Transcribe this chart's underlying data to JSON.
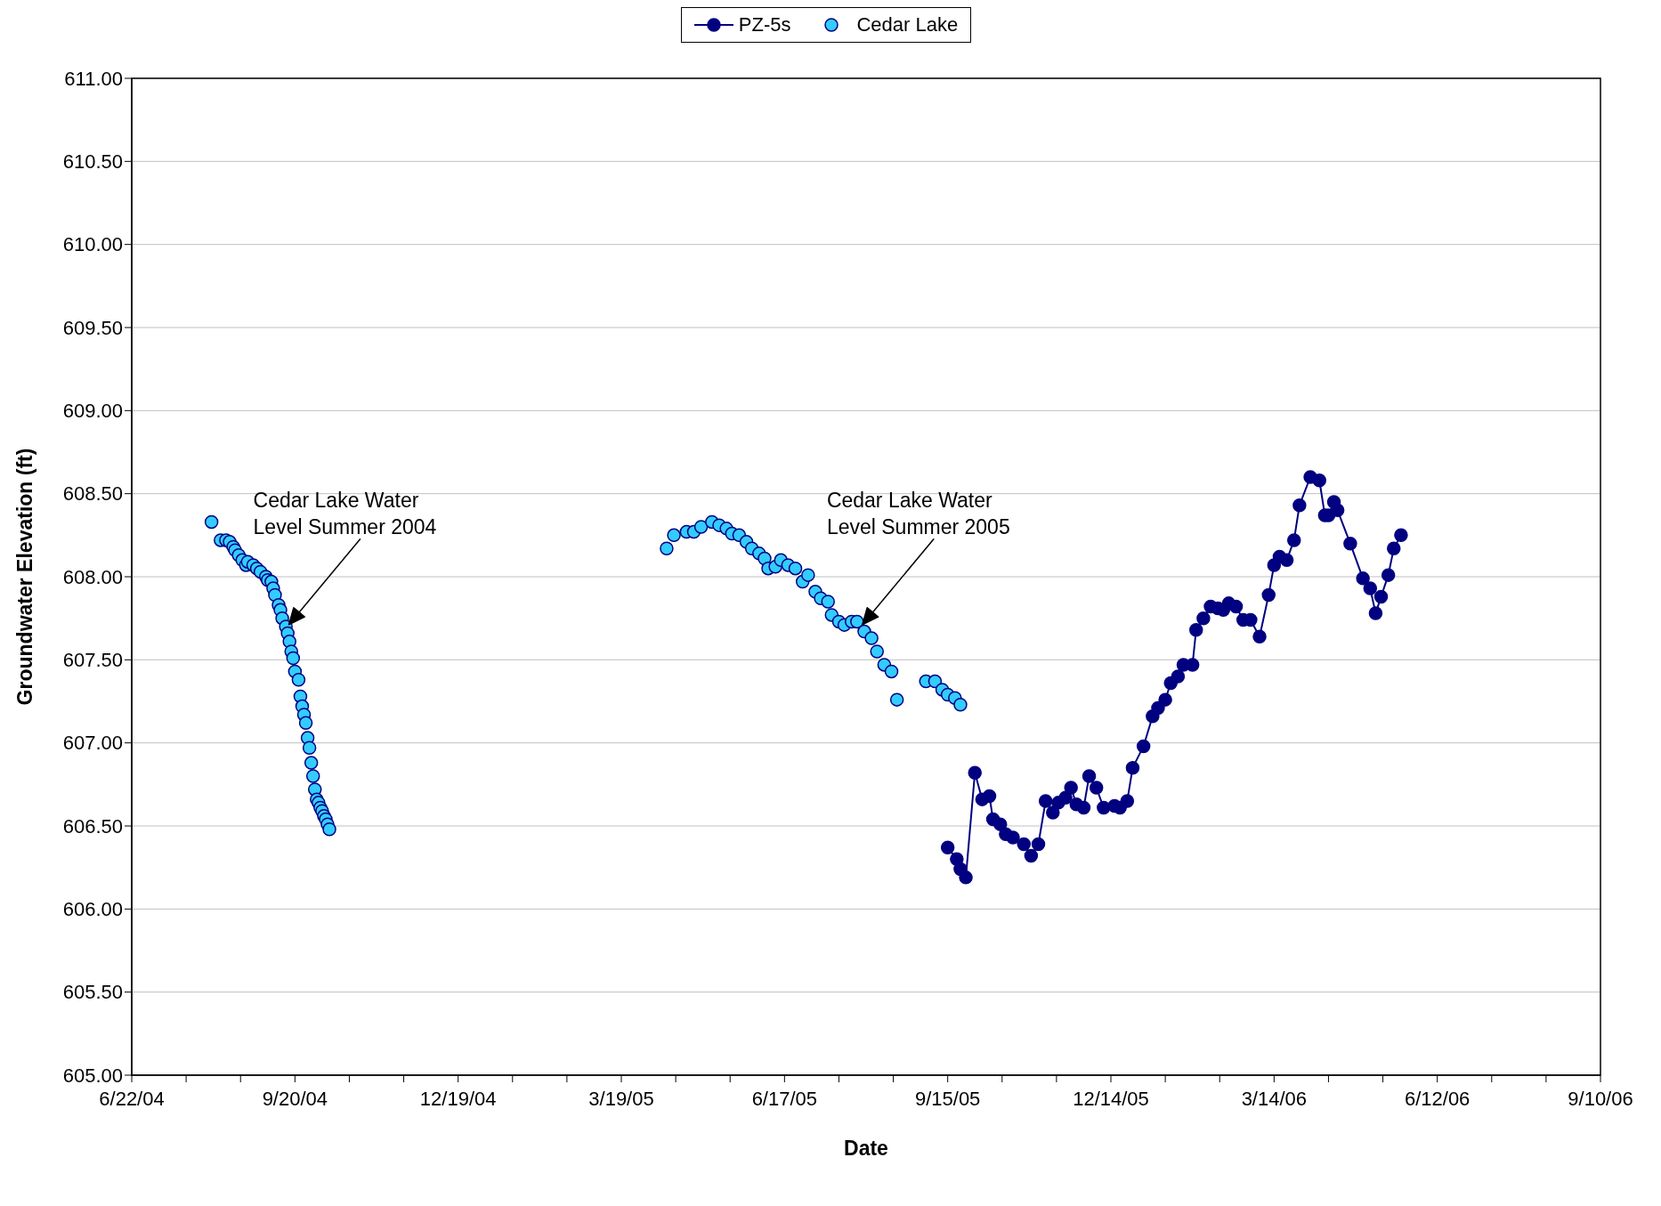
{
  "chart_data": {
    "type": "line",
    "xlabel": "Date",
    "ylabel": "Groundwater Elevation (ft)",
    "xlim": [
      "2004-06-22",
      "2006-09-10"
    ],
    "xticks": [
      {
        "value": "2004-06-22",
        "label": "6/22/04"
      },
      {
        "value": "2004-07-22",
        "label": null
      },
      {
        "value": "2004-08-21",
        "label": null
      },
      {
        "value": "2004-09-20",
        "label": "9/20/04"
      },
      {
        "value": "2004-10-20",
        "label": null
      },
      {
        "value": "2004-11-19",
        "label": null
      },
      {
        "value": "2004-12-19",
        "label": "12/19/04"
      },
      {
        "value": "2005-01-18",
        "label": null
      },
      {
        "value": "2005-02-17",
        "label": null
      },
      {
        "value": "2005-03-19",
        "label": "3/19/05"
      },
      {
        "value": "2005-04-18",
        "label": null
      },
      {
        "value": "2005-05-18",
        "label": null
      },
      {
        "value": "2005-06-17",
        "label": "6/17/05"
      },
      {
        "value": "2005-07-17",
        "label": null
      },
      {
        "value": "2005-08-16",
        "label": null
      },
      {
        "value": "2005-09-15",
        "label": "9/15/05"
      },
      {
        "value": "2005-10-15",
        "label": null
      },
      {
        "value": "2005-11-14",
        "label": null
      },
      {
        "value": "2005-12-14",
        "label": "12/14/05"
      },
      {
        "value": "2006-01-13",
        "label": null
      },
      {
        "value": "2006-02-12",
        "label": null
      },
      {
        "value": "2006-03-14",
        "label": "3/14/06"
      },
      {
        "value": "2006-04-13",
        "label": null
      },
      {
        "value": "2006-05-13",
        "label": null
      },
      {
        "value": "2006-06-12",
        "label": "6/12/06"
      },
      {
        "value": "2006-07-12",
        "label": null
      },
      {
        "value": "2006-08-11",
        "label": null
      },
      {
        "value": "2006-09-10",
        "label": "9/10/06"
      }
    ],
    "ylim": [
      605,
      611
    ],
    "yticks": [
      {
        "value": 605,
        "label": "605.00"
      },
      {
        "value": 605.5,
        "label": "605.50"
      },
      {
        "value": 606,
        "label": "606.00"
      },
      {
        "value": 606.5,
        "label": "606.50"
      },
      {
        "value": 607,
        "label": "607.00"
      },
      {
        "value": 607.5,
        "label": "607.50"
      },
      {
        "value": 608,
        "label": "608.00"
      },
      {
        "value": 608.5,
        "label": "608.50"
      },
      {
        "value": 609,
        "label": "609.00"
      },
      {
        "value": 609.5,
        "label": "609.50"
      },
      {
        "value": 610,
        "label": "610.00"
      },
      {
        "value": 610.5,
        "label": "610.50"
      },
      {
        "value": 611,
        "label": "611.00"
      }
    ],
    "grid": "y",
    "legend": "top",
    "marker": "circle",
    "series": [
      {
        "name": "PZ-5s",
        "type": "line",
        "color": "#000080",
        "x": [
          "2005-09-15",
          "2005-09-20",
          "2005-09-22",
          "2005-09-25",
          "2005-09-30",
          "2005-10-04",
          "2005-10-08",
          "2005-10-10",
          "2005-10-14",
          "2005-10-17",
          "2005-10-21",
          "2005-10-27",
          "2005-10-31",
          "2005-11-04",
          "2005-11-08",
          "2005-11-12",
          "2005-11-15",
          "2005-11-19",
          "2005-11-22",
          "2005-11-25",
          "2005-11-29",
          "2005-12-02",
          "2005-12-06",
          "2005-12-10",
          "2005-12-16",
          "2005-12-19",
          "2005-12-23",
          "2005-12-26",
          "2006-01-01",
          "2006-01-06",
          "2006-01-09",
          "2006-01-13",
          "2006-01-16",
          "2006-01-20",
          "2006-01-23",
          "2006-01-28",
          "2006-01-30",
          "2006-02-03",
          "2006-02-07",
          "2006-02-11",
          "2006-02-14",
          "2006-02-17",
          "2006-02-21",
          "2006-02-25",
          "2006-03-01",
          "2006-03-06",
          "2006-03-11",
          "2006-03-14",
          "2006-03-17",
          "2006-03-21",
          "2006-03-25",
          "2006-03-28",
          "2006-04-03",
          "2006-04-08",
          "2006-04-11",
          "2006-04-13",
          "2006-04-16",
          "2006-04-18",
          "2006-04-25",
          "2006-05-02",
          "2006-05-06",
          "2006-05-09",
          "2006-05-12",
          "2006-05-16",
          "2006-05-19",
          "2006-05-23"
        ],
        "values": [
          606.37,
          606.3,
          606.24,
          606.19,
          606.82,
          606.66,
          606.68,
          606.54,
          606.51,
          606.45,
          606.43,
          606.39,
          606.32,
          606.39,
          606.65,
          606.58,
          606.64,
          606.67,
          606.73,
          606.63,
          606.61,
          606.8,
          606.73,
          606.61,
          606.62,
          606.61,
          606.65,
          606.85,
          606.98,
          607.16,
          607.21,
          607.26,
          607.36,
          607.4,
          607.47,
          607.47,
          607.68,
          607.75,
          607.82,
          607.81,
          607.8,
          607.84,
          607.82,
          607.74,
          607.74,
          607.64,
          607.89,
          608.07,
          608.12,
          608.1,
          608.22,
          608.43,
          608.6,
          608.58,
          608.37,
          608.37,
          608.45,
          608.4,
          608.2,
          607.99,
          607.93,
          607.78,
          607.88,
          608.01,
          608.17,
          608.25
        ]
      },
      {
        "name": "Cedar Lake",
        "type": "scatter",
        "color": "#33ccff",
        "x": [
          "2004-08-05",
          "2004-08-10",
          "2004-08-13",
          "2004-08-15",
          "2004-08-17",
          "2004-08-18",
          "2004-08-20",
          "2004-08-22",
          "2004-08-24",
          "2004-08-25",
          "2004-08-28",
          "2004-08-30",
          "2004-09-01",
          "2004-09-04",
          "2004-09-05",
          "2004-09-07",
          "2004-09-08",
          "2004-09-09",
          "2004-09-11",
          "2004-09-12",
          "2004-09-13",
          "2004-09-15",
          "2004-09-16",
          "2004-09-17",
          "2004-09-18",
          "2004-09-19",
          "2004-09-20",
          "2004-09-22",
          "2004-09-23",
          "2004-09-24",
          "2004-09-25",
          "2004-09-26",
          "2004-09-27",
          "2004-09-28",
          "2004-09-29",
          "2004-09-30",
          "2004-10-01",
          "2004-10-02",
          "2004-10-03",
          "2004-10-04",
          "2004-10-05",
          "2004-10-06",
          "2004-10-07",
          "2004-10-08",
          "2004-10-09",
          "2005-04-13",
          "2005-04-17",
          "2005-04-24",
          "2005-04-28",
          "2005-05-02",
          "2005-05-08",
          "2005-05-12",
          "2005-05-16",
          "2005-05-19",
          "2005-05-23",
          "2005-05-27",
          "2005-05-30",
          "2005-06-03",
          "2005-06-06",
          "2005-06-08",
          "2005-06-12",
          "2005-06-15",
          "2005-06-19",
          "2005-06-23",
          "2005-06-27",
          "2005-06-30",
          "2005-07-04",
          "2005-07-07",
          "2005-07-11",
          "2005-07-13",
          "2005-07-17",
          "2005-07-20",
          "2005-07-24",
          "2005-07-27",
          "2005-07-31",
          "2005-08-04",
          "2005-08-07",
          "2005-08-11",
          "2005-08-15",
          "2005-08-18",
          "2005-09-03",
          "2005-09-08",
          "2005-09-12",
          "2005-09-15",
          "2005-09-19",
          "2005-09-22"
        ],
        "values": [
          608.33,
          608.22,
          608.22,
          608.21,
          608.18,
          608.16,
          608.13,
          608.1,
          608.07,
          608.09,
          608.07,
          608.05,
          608.03,
          608.0,
          607.98,
          607.97,
          607.93,
          607.89,
          607.83,
          607.8,
          607.75,
          607.7,
          607.66,
          607.61,
          607.55,
          607.51,
          607.43,
          607.38,
          607.28,
          607.22,
          607.17,
          607.12,
          607.03,
          606.97,
          606.88,
          606.8,
          606.72,
          606.66,
          606.64,
          606.61,
          606.59,
          606.56,
          606.54,
          606.51,
          606.48,
          608.17,
          608.25,
          608.27,
          608.27,
          608.3,
          608.33,
          608.31,
          608.29,
          608.26,
          608.25,
          608.21,
          608.17,
          608.14,
          608.11,
          608.05,
          608.06,
          608.1,
          608.07,
          608.05,
          607.97,
          608.01,
          607.91,
          607.87,
          607.85,
          607.77,
          607.73,
          607.71,
          607.73,
          607.73,
          607.67,
          607.63,
          607.55,
          607.47,
          607.43,
          607.26,
          607.37,
          607.37,
          607.32,
          607.29,
          607.27,
          607.23
        ]
      }
    ],
    "annotations": [
      "Cedar Lake Water Level Summer 2004",
      "Cedar Lake Water Level Summer 2005"
    ]
  }
}
